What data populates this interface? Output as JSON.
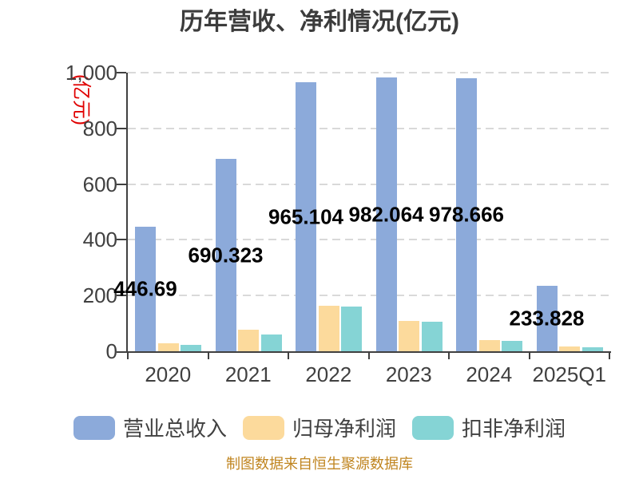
{
  "y_axis": {
    "unit": "(亿元)",
    "unit_color": "#E00000",
    "tick_labels": [
      "0",
      "200",
      "400",
      "600",
      "800",
      "1,000"
    ]
  },
  "footer": {
    "source_note": "制图数据来自恒生聚源数据库"
  },
  "colors": {
    "background": "#FFFFFF",
    "axis": "#404040",
    "grid": "#D9D9D9",
    "title": "#3C3C3C",
    "data_label": "#000000",
    "footer_text": "#C08520",
    "series_revenue": "#8CAADA",
    "series_net_profit": "#FCDA9C",
    "series_deducted_profit": "#85D4D5"
  },
  "chart_data": {
    "type": "bar",
    "title": "历年营收、净利情况(亿元)",
    "categories": [
      "2020",
      "2021",
      "2022",
      "2023",
      "2024",
      "2025Q1"
    ],
    "series": [
      {
        "name": "营业总收入",
        "color": "#8CAADA",
        "values": [
          446.69,
          690.323,
          965.104,
          982.064,
          978.666,
          233.828
        ],
        "data_labels": [
          "446.69",
          "690.323",
          "965.104",
          "982.064",
          "978.666",
          "233.828"
        ]
      },
      {
        "name": "归母净利润",
        "color": "#FCDA9C",
        "values": [
          30,
          76,
          162,
          108,
          41,
          17
        ],
        "estimated": true
      },
      {
        "name": "扣非净利润",
        "color": "#85D4D5",
        "values": [
          22,
          59,
          160,
          105,
          38,
          13
        ],
        "estimated": true
      }
    ],
    "ylim": [
      0,
      1000
    ],
    "y_ticks": [
      0,
      200,
      400,
      600,
      800,
      1000
    ],
    "y_tick_labels": [
      "0",
      "200",
      "400",
      "600",
      "800",
      "1,000"
    ],
    "ylabel": "(亿元)",
    "grid": "horizontal-dashed",
    "legend_position": "bottom",
    "source_note": "制图数据来自恒生聚源数据库"
  }
}
